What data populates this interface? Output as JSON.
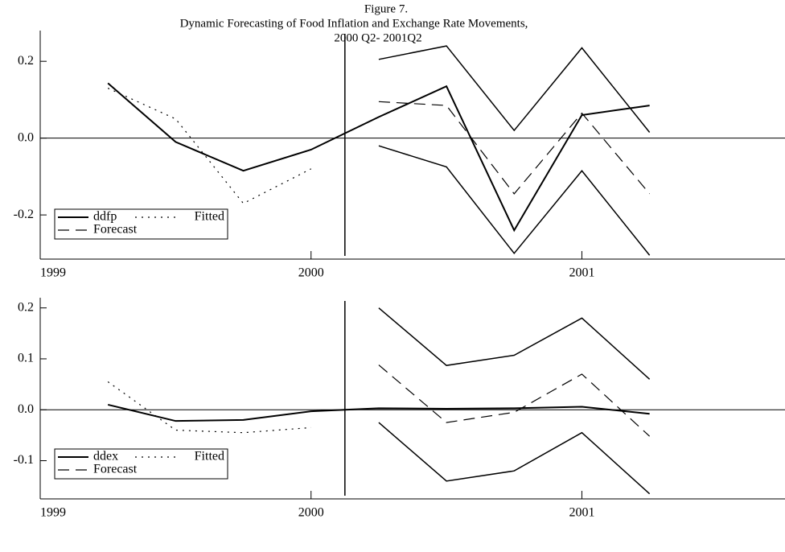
{
  "chart_data": [
    {
      "type": "line",
      "figure_label": "Figure 7.",
      "title": "Dynamic Forecasting of Food Inflation and Exchange Rate Movements,",
      "subtitle": "2000 Q2- 2001Q2",
      "xlim": [
        1999,
        2001.75
      ],
      "xticks": [
        1999,
        2000,
        2001
      ],
      "ylim": [
        -0.315,
        0.28
      ],
      "yticks": [
        -0.2,
        {
          "value": 0,
          "label": "0.0"
        },
        0.2
      ],
      "vline": 2000.125,
      "legend": "lower left",
      "series": [
        {
          "name": "ddfp",
          "color": "#000000",
          "dash": "solid",
          "x": [
            1999.25,
            1999.5,
            1999.75,
            2000,
            2000.25,
            2000.5,
            2000.75,
            2001,
            2001.25
          ],
          "values": [
            0.143,
            -0.01,
            -0.085,
            -0.03,
            0.055,
            0.135,
            -0.24,
            0.06,
            0.085
          ]
        },
        {
          "name": "Fitted",
          "color": "#000000",
          "dash": "dotted",
          "x": [
            1999.25,
            1999.5,
            1999.75,
            2000
          ],
          "values": [
            0.13,
            0.05,
            -0.17,
            -0.08
          ]
        },
        {
          "name": "Forecast",
          "color": "#000000",
          "dash": "dashed",
          "x": [
            2000.25,
            2000.5,
            2000.75,
            2001,
            2001.25
          ],
          "values": [
            0.095,
            0.085,
            -0.145,
            0.065,
            -0.145
          ],
          "upper": [
            0.205,
            0.24,
            0.02,
            0.235,
            0.015
          ],
          "lower": [
            -0.02,
            -0.075,
            -0.3,
            -0.085,
            -0.305
          ]
        }
      ]
    },
    {
      "type": "line",
      "xlim": [
        1999,
        2001.75
      ],
      "xticks": [
        1999,
        2000,
        2001
      ],
      "ylim": [
        -0.175,
        0.22
      ],
      "yticks": [
        -0.1,
        {
          "value": 0,
          "label": "0.0"
        },
        0.1,
        0.2
      ],
      "vline": 2000.125,
      "legend": "lower left",
      "series": [
        {
          "name": "ddex",
          "color": "#000000",
          "dash": "solid",
          "x": [
            1999.25,
            1999.5,
            1999.75,
            2000,
            2000.25,
            2000.5,
            2000.75,
            2001,
            2001.25
          ],
          "values": [
            0.01,
            -0.022,
            -0.02,
            -0.003,
            0.003,
            0.002,
            0.003,
            0.006,
            -0.008
          ]
        },
        {
          "name": "Fitted",
          "color": "#000000",
          "dash": "dotted",
          "x": [
            1999.25,
            1999.5,
            1999.75,
            2000
          ],
          "values": [
            0.055,
            -0.04,
            -0.045,
            -0.035
          ]
        },
        {
          "name": "Forecast",
          "color": "#000000",
          "dash": "dashed",
          "x": [
            2000.25,
            2000.5,
            2000.75,
            2001,
            2001.25
          ],
          "values": [
            0.088,
            -0.025,
            -0.005,
            0.07,
            -0.052
          ],
          "upper": [
            0.2,
            0.087,
            0.107,
            0.18,
            0.06
          ],
          "lower": [
            -0.025,
            -0.14,
            -0.12,
            -0.045,
            -0.165
          ]
        }
      ]
    }
  ]
}
